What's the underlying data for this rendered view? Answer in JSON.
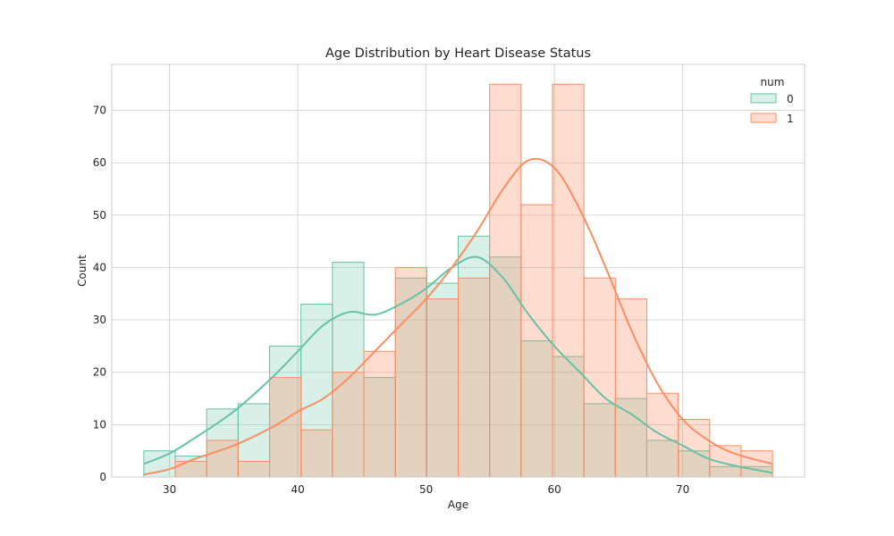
{
  "chart_data": {
    "type": "histogram",
    "title": "Age Distribution by Heart Disease Status",
    "xlabel": "Age",
    "ylabel": "Count",
    "xlim": [
      25.5,
      79.5
    ],
    "ylim": [
      0,
      78.8
    ],
    "xticks": [
      30,
      40,
      50,
      60,
      70
    ],
    "yticks": [
      0,
      10,
      20,
      30,
      40,
      50,
      60,
      70
    ],
    "grid": true,
    "legend": {
      "title": "num",
      "placement": "top-right"
    },
    "bin_edges": [
      28,
      30.45,
      32.9,
      35.35,
      37.8,
      40.25,
      42.7,
      45.15,
      47.6,
      50.05,
      52.5,
      54.95,
      57.4,
      59.85,
      62.3,
      64.75,
      67.2,
      69.65,
      72.1,
      74.55,
      77
    ],
    "series": [
      {
        "name": "0",
        "color": "#66c2a5",
        "counts": [
          5,
          4,
          13,
          14,
          25,
          33,
          41,
          19,
          38,
          37,
          46,
          42,
          26,
          23,
          14,
          15,
          7,
          5,
          2,
          2
        ],
        "kde": [
          [
            28,
            2.5
          ],
          [
            30,
            4.5
          ],
          [
            32,
            7.5
          ],
          [
            35,
            12.5
          ],
          [
            38,
            19
          ],
          [
            40,
            24
          ],
          [
            42,
            29
          ],
          [
            44,
            31.5
          ],
          [
            46,
            31
          ],
          [
            48,
            33
          ],
          [
            50,
            36
          ],
          [
            52,
            40
          ],
          [
            54,
            42
          ],
          [
            56,
            38
          ],
          [
            58,
            31
          ],
          [
            60,
            25
          ],
          [
            62,
            20
          ],
          [
            64,
            15
          ],
          [
            66,
            12
          ],
          [
            68,
            8.5
          ],
          [
            70,
            6
          ],
          [
            72,
            3.5
          ],
          [
            74,
            2.2
          ],
          [
            77,
            0.8
          ]
        ]
      },
      {
        "name": "1",
        "color": "#fc8d62",
        "counts": [
          0,
          3,
          7,
          3,
          19,
          9,
          20,
          24,
          40,
          34,
          38,
          75,
          52,
          75,
          38,
          34,
          16,
          11,
          6,
          5
        ],
        "kde": [
          [
            28,
            0.5
          ],
          [
            30,
            1.5
          ],
          [
            32,
            3.5
          ],
          [
            35,
            6
          ],
          [
            38,
            9.5
          ],
          [
            40,
            12.5
          ],
          [
            42,
            15
          ],
          [
            44,
            19
          ],
          [
            46,
            24
          ],
          [
            48,
            29
          ],
          [
            50,
            34
          ],
          [
            52,
            40
          ],
          [
            54,
            47
          ],
          [
            56,
            55
          ],
          [
            58,
            60.5
          ],
          [
            60,
            59
          ],
          [
            62,
            51
          ],
          [
            64,
            40
          ],
          [
            66,
            28
          ],
          [
            68,
            18
          ],
          [
            70,
            11
          ],
          [
            72,
            7
          ],
          [
            74,
            4.5
          ],
          [
            77,
            2.5
          ]
        ]
      }
    ]
  }
}
